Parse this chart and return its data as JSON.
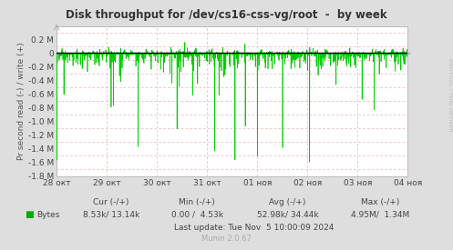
{
  "title": "Disk throughput for /dev/cs16-css-vg/root  -  by week",
  "ylabel": "Pr second read (-) / write (+)",
  "bg_color": "#dedede",
  "plot_bg_color": "#ffffff",
  "grid_color_major": "#ffffff",
  "grid_color_minor": "#f0b0b0",
  "line_color": "#00cc00",
  "avg_line_color": "#000000",
  "title_color": "#333333",
  "axis_label_color": "#555555",
  "tick_label_color": "#444444",
  "rrdtool_text_color": "#bbbbbb",
  "munin_text_color": "#aaaaaa",
  "ylim": [
    -1800000.0,
    400000.0
  ],
  "yticks": [
    -1800000.0,
    -1600000.0,
    -1400000.0,
    -1200000.0,
    -1000000.0,
    -800000.0,
    -600000.0,
    -400000.0,
    -200000.0,
    0.0,
    200000.0
  ],
  "ytick_labels": [
    "-1.8 M",
    "-1.6 M",
    "-1.4 M",
    "-1.2 M",
    "-1.0 M",
    "-0.8 M",
    "-0.6 M",
    "-0.4 M",
    "-0.2 M",
    "0",
    "0.2 M"
  ],
  "x_start": 0,
  "x_end": 604800,
  "xtick_positions": [
    0,
    86400,
    172800,
    259200,
    345600,
    432000,
    518400,
    604800
  ],
  "xtick_labels": [
    "28 окт",
    "29 окт",
    "30 окт",
    "31 окт",
    "01 ноя",
    "02 ноя",
    "03 ноя",
    "04 ноя"
  ],
  "avg_value": 5000,
  "legend_label": "Bytes",
  "legend_color": "#00aa00",
  "cur_neg": "8.53k",
  "cur_pos": "13.14k",
  "min_neg": "0.00",
  "min_pos": "4.53k",
  "avg_neg": "52.98k",
  "avg_pos": "34.44k",
  "max_neg": "4.95M",
  "max_pos": "1.34M",
  "last_update": "Last update: Tue Nov  5 10:00:09 2024",
  "munin_version": "Munin 2.0.67"
}
